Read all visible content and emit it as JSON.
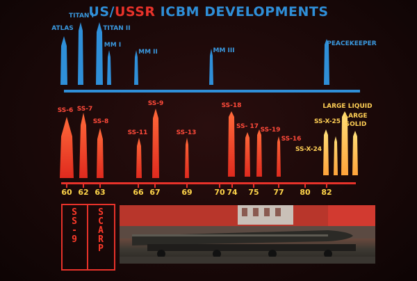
{
  "title": {
    "us": "US",
    "slash": "/",
    "ussr": "USSR",
    "rest": " ICBM DEVELOPMENTS"
  },
  "us_labels": [
    {
      "text": "ATLAS"
    },
    {
      "text": "TITAN I"
    },
    {
      "text": "TITAN II"
    },
    {
      "text": "MM I"
    },
    {
      "text": "MM II"
    },
    {
      "text": "MM III"
    },
    {
      "text": "PEACEKEEPER"
    }
  ],
  "ussr_labels": [
    {
      "text": "SS-6"
    },
    {
      "text": "SS-7"
    },
    {
      "text": "SS-8"
    },
    {
      "text": "SS-11"
    },
    {
      "text": "SS-9"
    },
    {
      "text": "SS-13"
    },
    {
      "text": "SS-18"
    },
    {
      "text": "SS- 17"
    },
    {
      "text": "SS-19"
    },
    {
      "text": "SS-16"
    },
    {
      "text": "SS-X-24"
    },
    {
      "text": "SS-X-25"
    },
    {
      "text": "LARGE LIQUID"
    },
    {
      "text": "LARGE"
    },
    {
      "text": "SOLID"
    }
  ],
  "years": [
    "60",
    "62",
    "63",
    "66",
    "67",
    "69",
    "70",
    "74",
    "75",
    "77",
    "80",
    "82"
  ],
  "inset": {
    "left_letters": [
      "S",
      "S",
      "-",
      "9"
    ],
    "right_letters": [
      "S",
      "C",
      "A",
      "R",
      "P"
    ]
  },
  "colors": {
    "us": "#2f8fd8",
    "ussr": "#e8322a",
    "years": "#ffd54a",
    "future": "#ffb347",
    "background": "#1a0909"
  }
}
